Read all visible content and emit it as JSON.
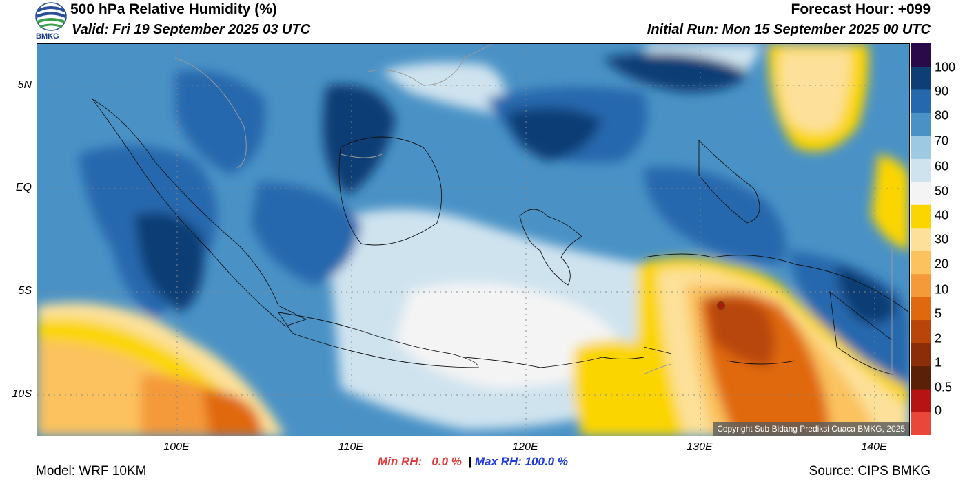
{
  "header": {
    "title": "500 hPa Relative Humidity (%)",
    "valid": "Valid: Fri 19 September 2025 03 UTC",
    "forecast_hour": "Forecast Hour: +099",
    "initial_run": "Initial Run: Mon 15 September 2025 00 UTC",
    "brand": "BMKG"
  },
  "map": {
    "copyright": "Copyright Sub Bidang Prediksi Cuaca BMKG, 2025",
    "lat_labels": [
      "5N",
      "EQ",
      "5S",
      "10S"
    ],
    "lon_labels": [
      "100E",
      "110E",
      "120E",
      "130E",
      "140E"
    ]
  },
  "colorbar": {
    "labels": [
      "100",
      "90",
      "80",
      "70",
      "60",
      "50",
      "40",
      "30",
      "20",
      "10",
      "5",
      "2",
      "1",
      "0.5",
      "0"
    ],
    "colors": [
      "#e8473a",
      "#b51414",
      "#5a2108",
      "#8a2d08",
      "#b8460a",
      "#e0690f",
      "#f59a3a",
      "#fbc25e",
      "#fde19a",
      "#fbd500",
      "#f4f4f4",
      "#cfe3ef",
      "#9ec9e3",
      "#4a92c6",
      "#2668ad",
      "#0f3e74",
      "#2b0a4a"
    ]
  },
  "footer": {
    "model": "Model: WRF 10KM",
    "source": "Source: CIPS BMKG",
    "min_label": "Min RH:",
    "min_value": "0.0 %",
    "separator": "|",
    "max_label": "Max RH:",
    "max_value": "100.0 %"
  }
}
